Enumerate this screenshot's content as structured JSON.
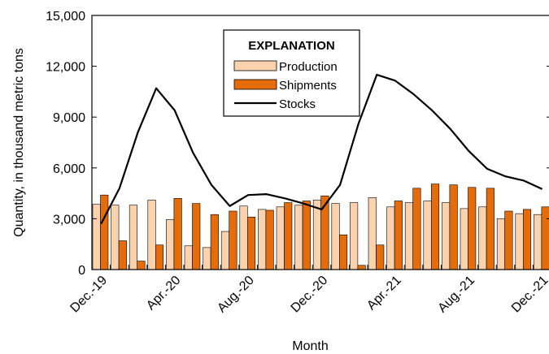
{
  "chart_data": {
    "type": "bar",
    "xlabel": "Month",
    "ylabel": "Quantity, in thousand metric tons",
    "ylim": [
      0,
      15000
    ],
    "yticks": [
      0,
      3000,
      6000,
      9000,
      12000,
      15000
    ],
    "ytick_labels": [
      "0",
      "3,000",
      "6,000",
      "9,000",
      "12,000",
      "15,000"
    ],
    "xtick_labels": [
      "Dec.-19",
      "Apr.-20",
      "Aug.-20",
      "Dec.-20",
      "Apr.-21",
      "Aug.-21",
      "Dec.-21"
    ],
    "xtick_label_months": [
      "Dec-2019",
      "Apr-2020",
      "Aug-2020",
      "Dec-2020",
      "Apr-2021",
      "Aug-2021",
      "Dec-2021"
    ],
    "categories": [
      "Dec-2019",
      "Jan-2020",
      "Feb-2020",
      "Mar-2020",
      "Apr-2020",
      "May-2020",
      "Jun-2020",
      "Jul-2020",
      "Aug-2020",
      "Sep-2020",
      "Oct-2020",
      "Nov-2020",
      "Dec-2020",
      "Jan-2021",
      "Feb-2021",
      "Mar-2021",
      "Apr-2021",
      "May-2021",
      "Jun-2021",
      "Jul-2021",
      "Aug-2021",
      "Sep-2021",
      "Oct-2021",
      "Nov-2021",
      "Dec-2021"
    ],
    "legend": {
      "title": "EXPLANATION",
      "placement": "top-center",
      "entries": [
        "Production",
        "Shipments",
        "Stocks"
      ]
    },
    "series": [
      {
        "name": "Production",
        "kind": "bar",
        "color": "#FBD2AE",
        "values": [
          3850,
          3800,
          3800,
          4100,
          2950,
          1400,
          1300,
          2250,
          3750,
          3550,
          3700,
          3800,
          4100,
          3900,
          3950,
          4250,
          3700,
          3950,
          4050,
          3950,
          3600,
          3700,
          3000,
          3300,
          3250
        ]
      },
      {
        "name": "Shipments",
        "kind": "bar",
        "color": "#E46C0A",
        "values": [
          4400,
          1700,
          500,
          1450,
          4200,
          3900,
          3250,
          3450,
          3100,
          3500,
          3950,
          4050,
          4350,
          2050,
          250,
          1450,
          4050,
          4800,
          5050,
          5000,
          4850,
          4800,
          3450,
          3550,
          3700
        ]
      },
      {
        "name": "Stocks",
        "kind": "line",
        "color": "#000000",
        "values": [
          2700,
          4800,
          8100,
          10700,
          9400,
          6900,
          5000,
          3750,
          4400,
          4450,
          4200,
          3900,
          3550,
          5000,
          8600,
          11500,
          11150,
          10350,
          9400,
          8300,
          7000,
          5950,
          5500,
          5250,
          4750
        ]
      }
    ]
  }
}
